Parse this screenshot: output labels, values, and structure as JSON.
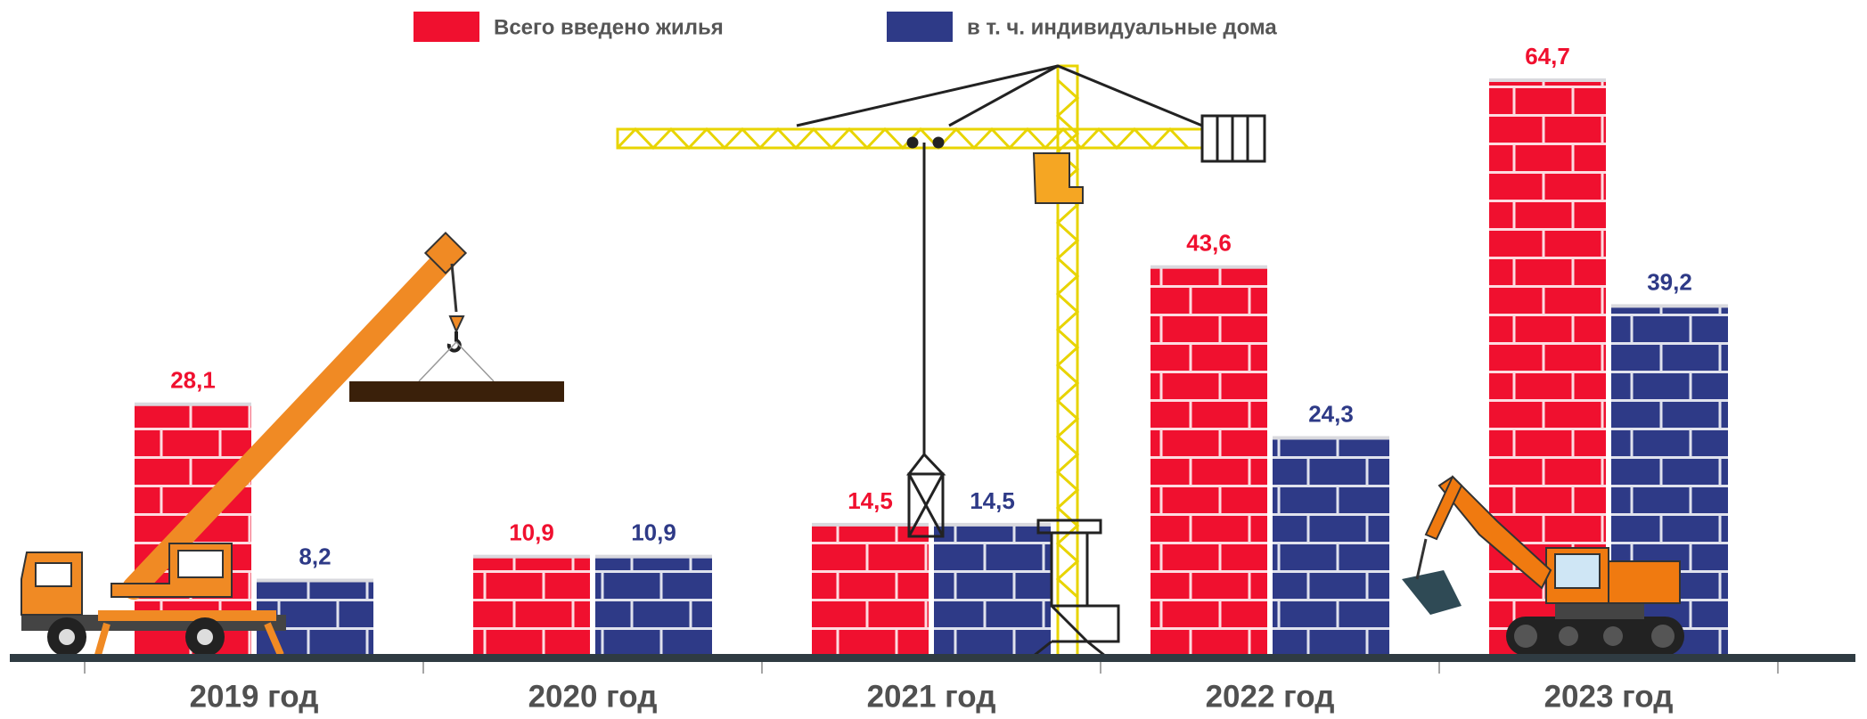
{
  "chart_data": {
    "type": "bar",
    "categories": [
      "2019 год",
      "2020 год",
      "2021 год",
      "2022 год",
      "2023 год"
    ],
    "series": [
      {
        "name": "Всего введено жилья",
        "color": "#f0102f",
        "values": [
          28.1,
          10.9,
          14.5,
          43.6,
          64.7
        ],
        "value_labels": [
          "28,1",
          "10,9",
          "14,5",
          "43,6",
          "64,7"
        ]
      },
      {
        "name": "в т. ч. индивидуальные дома",
        "color": "#2e3a87",
        "values": [
          8.2,
          10.9,
          14.5,
          24.3,
          39.2
        ],
        "value_labels": [
          "8,2",
          "10,9",
          "14,5",
          "24,3",
          "39,2"
        ]
      }
    ],
    "legend": "top"
  }
}
